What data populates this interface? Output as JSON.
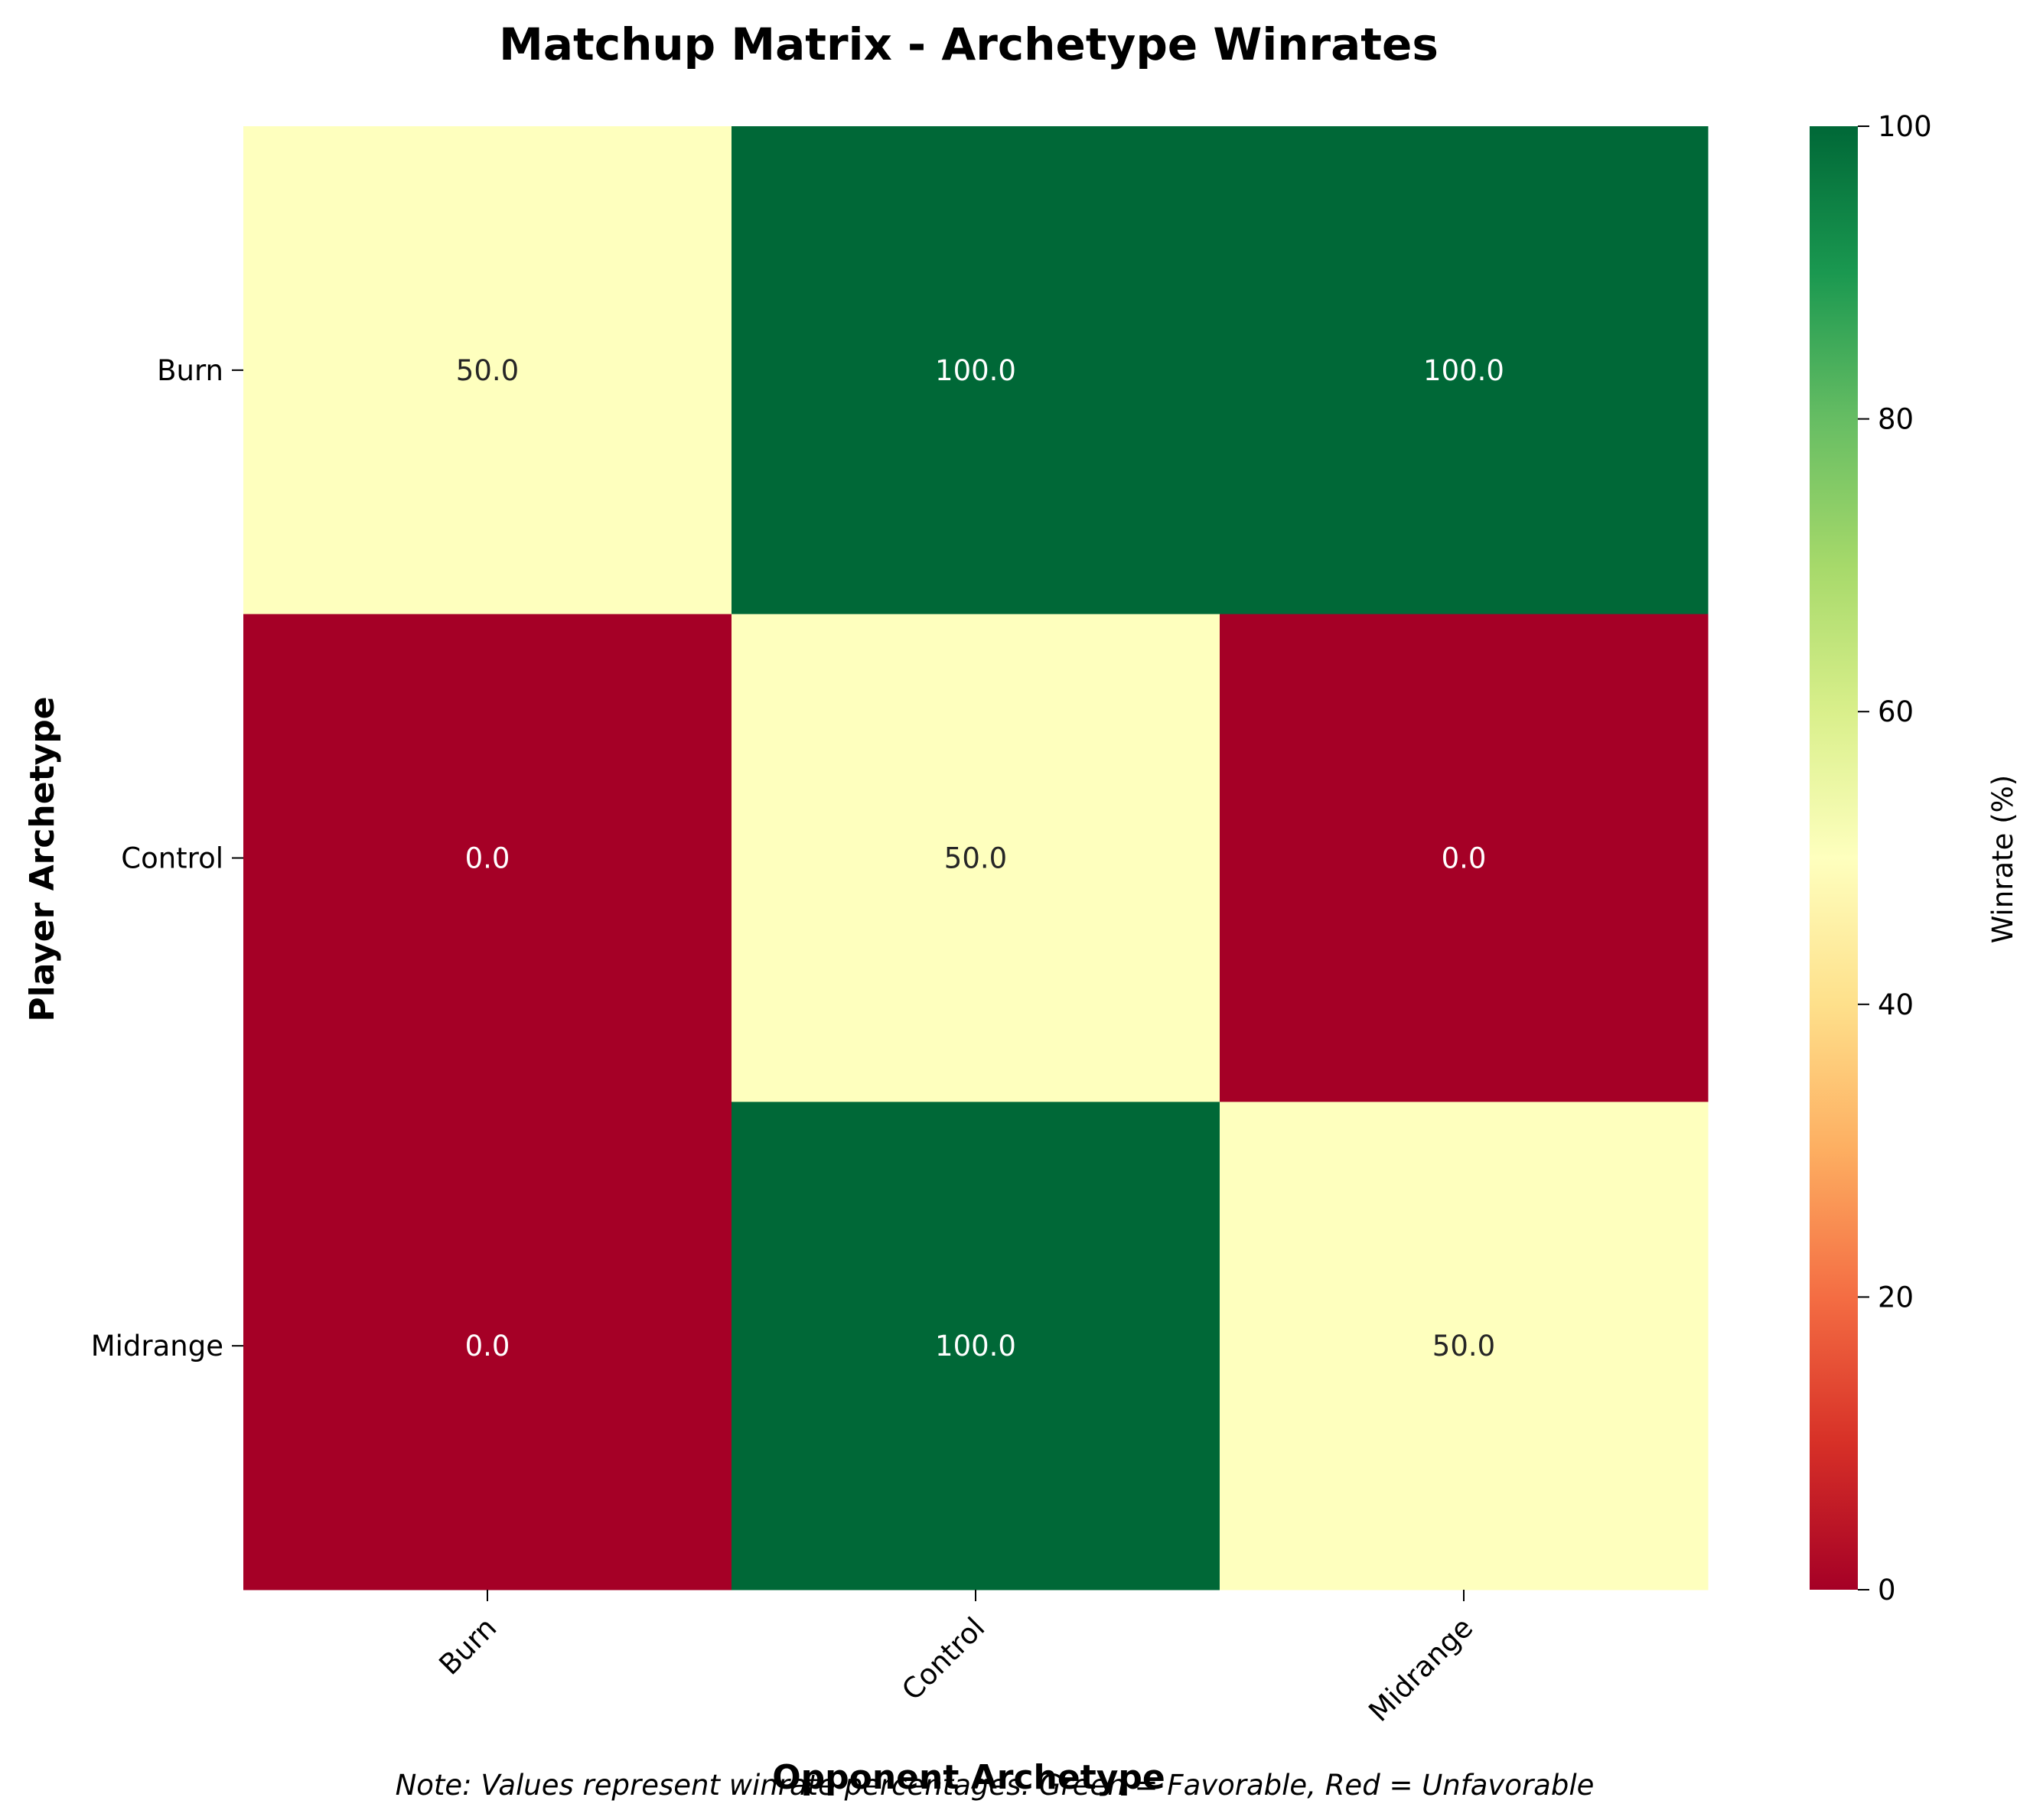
{
  "chart_data": {
    "type": "heatmap",
    "title": "Matchup Matrix - Archetype Winrates",
    "xlabel": "Opponent Archetype",
    "ylabel": "Player Archetype",
    "x_categories": [
      "Burn",
      "Control",
      "Midrange"
    ],
    "y_categories": [
      "Burn",
      "Control",
      "Midrange"
    ],
    "values": [
      [
        50.0,
        100.0,
        100.0
      ],
      [
        0.0,
        50.0,
        0.0
      ],
      [
        0.0,
        100.0,
        50.0
      ]
    ],
    "value_format": "0.0",
    "colormap": "RdYlGn",
    "colorbar": {
      "label": "Winrate (%)",
      "range": [
        0,
        100
      ],
      "ticks": [
        0,
        20,
        40,
        60,
        80,
        100
      ]
    },
    "colors": {
      "low": "#a50026",
      "mid": "#feffbe",
      "high": "#006837"
    },
    "note": "Note: Values represent winrate percentages. Green = Favorable, Red = Unfavorable"
  }
}
